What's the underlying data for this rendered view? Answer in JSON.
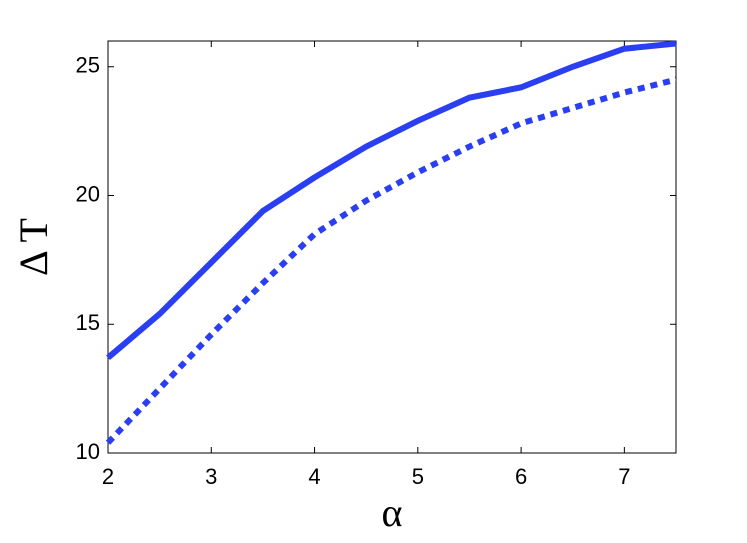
{
  "chart_data": {
    "type": "line",
    "x_label": "α",
    "y_label": "Δ T",
    "x": [
      2,
      2.5,
      3,
      3.5,
      4,
      4.5,
      5,
      5.5,
      6,
      6.5,
      7,
      7.5
    ],
    "series": [
      {
        "color": "#2b3ff2",
        "style": "solid",
        "values": [
          13.7,
          15.4,
          17.4,
          19.4,
          20.7,
          21.9,
          22.9,
          23.8,
          24.2,
          25.0,
          25.7,
          25.9
        ]
      },
      {
        "color": "#2b3ff2",
        "style": "dotted",
        "values": [
          10.4,
          12.5,
          14.6,
          16.6,
          18.5,
          19.8,
          20.9,
          21.9,
          22.8,
          23.4,
          24.0,
          24.5
        ]
      }
    ],
    "xlim": [
      2,
      7.5
    ],
    "xticks": [
      2,
      3,
      4,
      5,
      6,
      7
    ],
    "ylim": [
      10,
      26
    ],
    "yticks": [
      10,
      15,
      20,
      25
    ]
  }
}
